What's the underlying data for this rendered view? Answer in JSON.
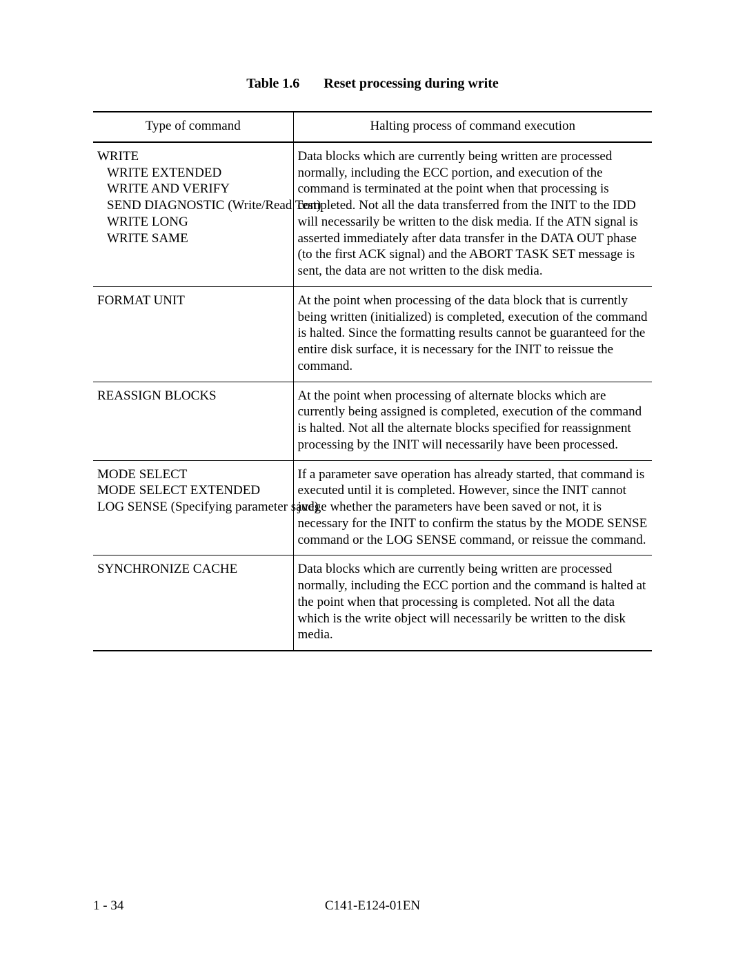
{
  "caption": {
    "label": "Table 1.6",
    "title": "Reset processing during write"
  },
  "columns": {
    "left": "Type of command",
    "right": "Halting process of command execution"
  },
  "rows": [
    {
      "commands": [
        "WRITE",
        "WRITE EXTENDED",
        "WRITE AND VERIFY",
        "SEND DIAGNOSTIC (Write/Read Test)",
        "WRITE LONG",
        "WRITE SAME"
      ],
      "indent": true,
      "desc": "Data blocks which are currently being written are processed normally, including the ECC portion, and execution of the command is terminated at the point when that processing is completed.  Not all the data transferred from the INIT to the IDD will necessarily be written to the disk media.  If the ATN signal is asserted immediately after data transfer in the DATA OUT phase (to the first ACK signal) and the ABORT TASK SET message is sent, the data are not written to the disk media."
    },
    {
      "commands": [
        "FORMAT UNIT"
      ],
      "indent": false,
      "desc": "At the point when processing of the data block that is currently being written (initialized) is completed, execution of the command is halted.  Since the formatting results cannot be guaranteed for the entire disk surface, it is necessary for the INIT to reissue the command."
    },
    {
      "commands": [
        "REASSIGN BLOCKS"
      ],
      "indent": false,
      "desc": "At the point when processing of alternate blocks which are currently being assigned is completed, execution of the command is halted.  Not all the alternate blocks specified for reassignment processing by the INIT will necessarily have been processed."
    },
    {
      "commands": [
        "MODE SELECT",
        "MODE SELECT EXTENDED",
        "LOG SENSE (Specifying parameter save)"
      ],
      "indent": false,
      "desc": "If a parameter save operation has already started, that command is executed until it is completed.  However, since the INIT cannot judge whether the parameters have been saved or not, it is necessary for the INIT to confirm the status by the MODE SENSE command or the LOG SENSE command, or reissue the command."
    },
    {
      "commands": [
        "SYNCHRONIZE CACHE"
      ],
      "indent": false,
      "desc": "Data blocks which are currently being written are processed normally, including the ECC portion and the command is halted at the point when that processing is completed.  Not all the data which is the write object will necessarily be written to the disk media."
    }
  ],
  "footer": {
    "page": "1 - 34",
    "docid": "C141-E124-01EN"
  }
}
